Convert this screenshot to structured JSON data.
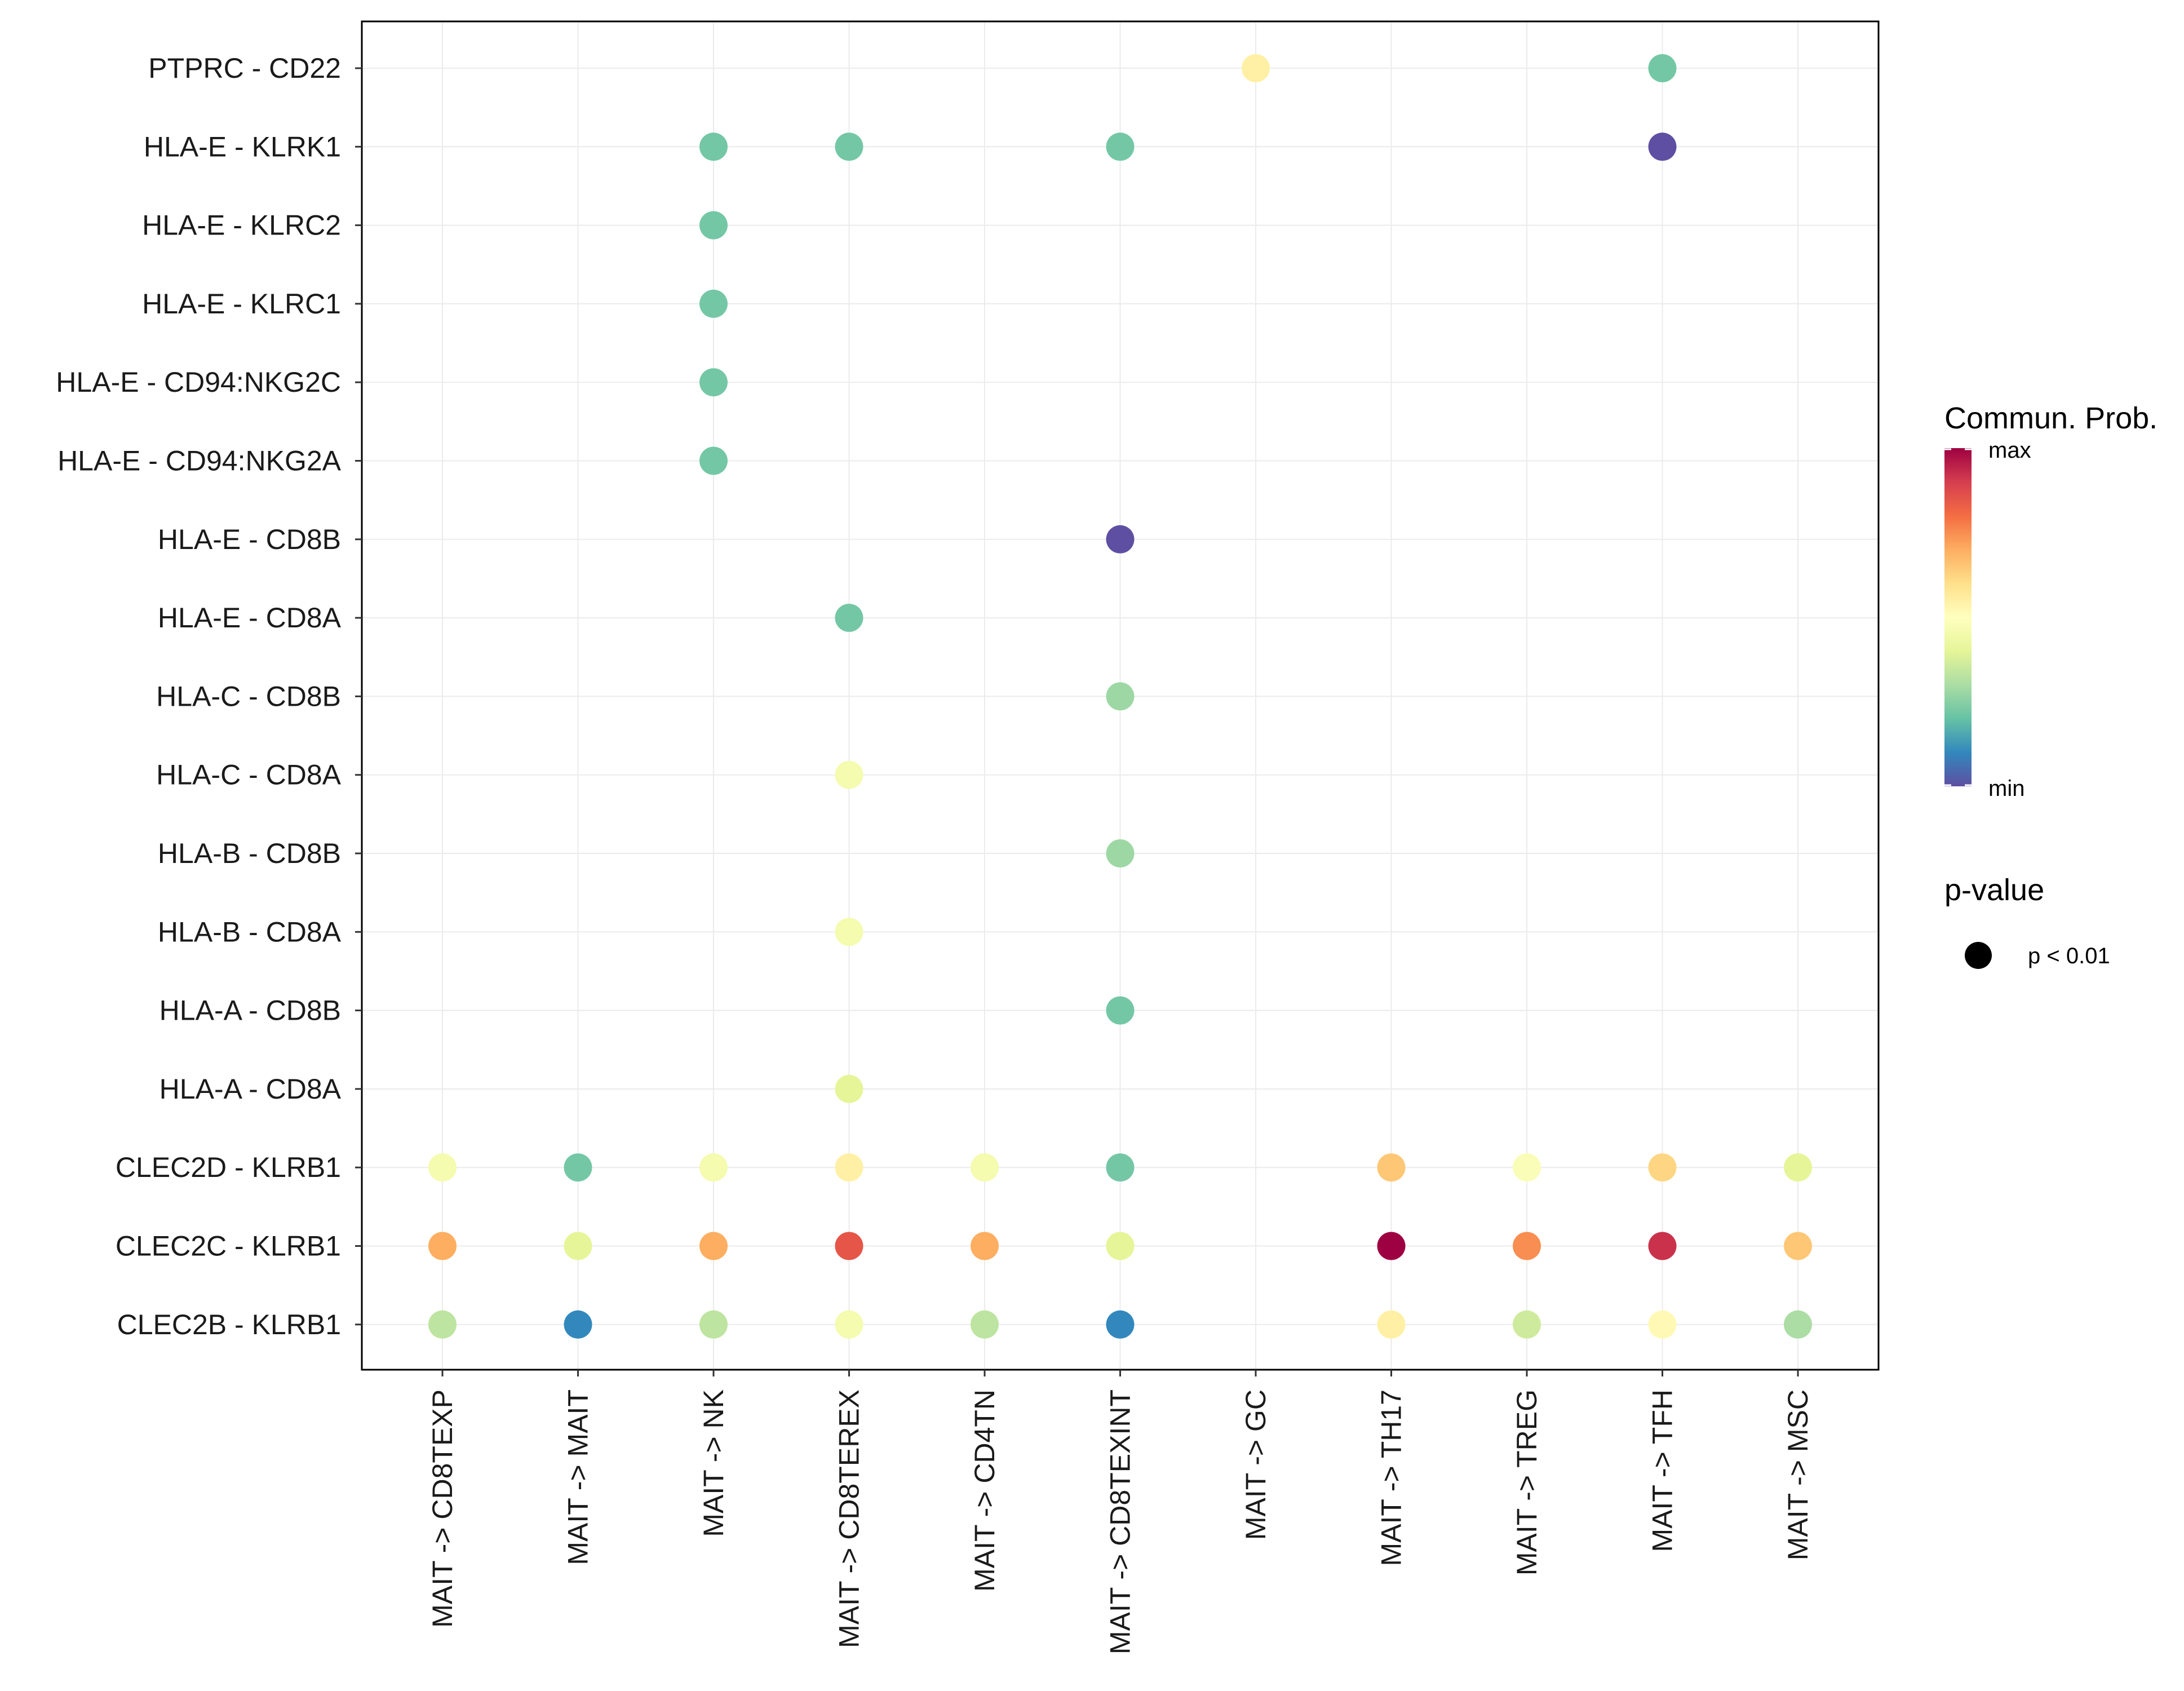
{
  "chart_data": {
    "type": "scatter",
    "subtype": "dot-plot",
    "title": "",
    "xlabel": "",
    "ylabel": "",
    "grid": true,
    "x_categories": [
      "MAIT -> CD8TEXP",
      "MAIT -> MAIT",
      "MAIT -> NK",
      "MAIT -> CD8TEREX",
      "MAIT -> CD4TN",
      "MAIT -> CD8TEXINT",
      "MAIT -> GC",
      "MAIT -> TH17",
      "MAIT -> TREG",
      "MAIT -> TFH",
      "MAIT -> MSC"
    ],
    "y_categories": [
      "PTPRC - CD22",
      "HLA-E - KLRK1",
      "HLA-E - KLRC2",
      "HLA-E - KLRC1",
      "HLA-E - CD94:NKG2C",
      "HLA-E - CD94:NKG2A",
      "HLA-E - CD8B",
      "HLA-E - CD8A",
      "HLA-C - CD8B",
      "HLA-C - CD8A",
      "HLA-B - CD8B",
      "HLA-B - CD8A",
      "HLA-A - CD8B",
      "HLA-A - CD8A",
      "CLEC2D - KLRB1",
      "CLEC2C - KLRB1",
      "CLEC2B - KLRB1"
    ],
    "points": [
      {
        "x": "MAIT -> GC",
        "y": "PTPRC - CD22",
        "prob": 0.55
      },
      {
        "x": "MAIT -> TFH",
        "y": "PTPRC - CD22",
        "prob": 0.22
      },
      {
        "x": "MAIT -> NK",
        "y": "HLA-E - KLRK1",
        "prob": 0.22
      },
      {
        "x": "MAIT -> CD8TEREX",
        "y": "HLA-E - KLRK1",
        "prob": 0.22
      },
      {
        "x": "MAIT -> CD8TEXINT",
        "y": "HLA-E - KLRK1",
        "prob": 0.22
      },
      {
        "x": "MAIT -> TFH",
        "y": "HLA-E - KLRK1",
        "prob": 0.0
      },
      {
        "x": "MAIT -> NK",
        "y": "HLA-E - KLRC2",
        "prob": 0.22
      },
      {
        "x": "MAIT -> NK",
        "y": "HLA-E - KLRC1",
        "prob": 0.22
      },
      {
        "x": "MAIT -> NK",
        "y": "HLA-E - CD94:NKG2C",
        "prob": 0.22
      },
      {
        "x": "MAIT -> NK",
        "y": "HLA-E - CD94:NKG2A",
        "prob": 0.22
      },
      {
        "x": "MAIT -> CD8TEXINT",
        "y": "HLA-E - CD8B",
        "prob": 0.0
      },
      {
        "x": "MAIT -> CD8TEREX",
        "y": "HLA-E - CD8A",
        "prob": 0.22
      },
      {
        "x": "MAIT -> CD8TEXINT",
        "y": "HLA-C - CD8B",
        "prob": 0.28
      },
      {
        "x": "MAIT -> CD8TEREX",
        "y": "HLA-C - CD8A",
        "prob": 0.46
      },
      {
        "x": "MAIT -> CD8TEXINT",
        "y": "HLA-B - CD8B",
        "prob": 0.28
      },
      {
        "x": "MAIT -> CD8TEREX",
        "y": "HLA-B - CD8A",
        "prob": 0.46
      },
      {
        "x": "MAIT -> CD8TEXINT",
        "y": "HLA-A - CD8B",
        "prob": 0.22
      },
      {
        "x": "MAIT -> CD8TEREX",
        "y": "HLA-A - CD8A",
        "prob": 0.4
      },
      {
        "x": "MAIT -> CD8TEXP",
        "y": "CLEC2D - KLRB1",
        "prob": 0.46
      },
      {
        "x": "MAIT -> MAIT",
        "y": "CLEC2D - KLRB1",
        "prob": 0.22
      },
      {
        "x": "MAIT -> NK",
        "y": "CLEC2D - KLRB1",
        "prob": 0.46
      },
      {
        "x": "MAIT -> CD8TEREX",
        "y": "CLEC2D - KLRB1",
        "prob": 0.55
      },
      {
        "x": "MAIT -> CD4TN",
        "y": "CLEC2D - KLRB1",
        "prob": 0.46
      },
      {
        "x": "MAIT -> CD8TEXINT",
        "y": "CLEC2D - KLRB1",
        "prob": 0.22
      },
      {
        "x": "MAIT -> TH17",
        "y": "CLEC2D - KLRB1",
        "prob": 0.65
      },
      {
        "x": "MAIT -> TREG",
        "y": "CLEC2D - KLRB1",
        "prob": 0.48
      },
      {
        "x": "MAIT -> TFH",
        "y": "CLEC2D - KLRB1",
        "prob": 0.62
      },
      {
        "x": "MAIT -> MSC",
        "y": "CLEC2D - KLRB1",
        "prob": 0.4
      },
      {
        "x": "MAIT -> CD8TEXP",
        "y": "CLEC2C - KLRB1",
        "prob": 0.7
      },
      {
        "x": "MAIT -> MAIT",
        "y": "CLEC2C - KLRB1",
        "prob": 0.4
      },
      {
        "x": "MAIT -> NK",
        "y": "CLEC2C - KLRB1",
        "prob": 0.7
      },
      {
        "x": "MAIT -> CD8TEREX",
        "y": "CLEC2C - KLRB1",
        "prob": 0.85
      },
      {
        "x": "MAIT -> CD4TN",
        "y": "CLEC2C - KLRB1",
        "prob": 0.7
      },
      {
        "x": "MAIT -> CD8TEXINT",
        "y": "CLEC2C - KLRB1",
        "prob": 0.4
      },
      {
        "x": "MAIT -> TH17",
        "y": "CLEC2C - KLRB1",
        "prob": 1.0
      },
      {
        "x": "MAIT -> TREG",
        "y": "CLEC2C - KLRB1",
        "prob": 0.75
      },
      {
        "x": "MAIT -> TFH",
        "y": "CLEC2C - KLRB1",
        "prob": 0.92
      },
      {
        "x": "MAIT -> MSC",
        "y": "CLEC2C - KLRB1",
        "prob": 0.65
      },
      {
        "x": "MAIT -> CD8TEXP",
        "y": "CLEC2B - KLRB1",
        "prob": 0.33
      },
      {
        "x": "MAIT -> MAIT",
        "y": "CLEC2B - KLRB1",
        "prob": 0.1
      },
      {
        "x": "MAIT -> NK",
        "y": "CLEC2B - KLRB1",
        "prob": 0.33
      },
      {
        "x": "MAIT -> CD8TEREX",
        "y": "CLEC2B - KLRB1",
        "prob": 0.46
      },
      {
        "x": "MAIT -> CD4TN",
        "y": "CLEC2B - KLRB1",
        "prob": 0.33
      },
      {
        "x": "MAIT -> CD8TEXINT",
        "y": "CLEC2B - KLRB1",
        "prob": 0.1
      },
      {
        "x": "MAIT -> TH17",
        "y": "CLEC2B - KLRB1",
        "prob": 0.55
      },
      {
        "x": "MAIT -> TREG",
        "y": "CLEC2B - KLRB1",
        "prob": 0.36
      },
      {
        "x": "MAIT -> TFH",
        "y": "CLEC2B - KLRB1",
        "prob": 0.52
      },
      {
        "x": "MAIT -> MSC",
        "y": "CLEC2B - KLRB1",
        "prob": 0.3
      }
    ],
    "color_legend": {
      "title": "Commun. Prob.",
      "max_label": "max",
      "min_label": "min",
      "colors": [
        "#9e0142",
        "#d53e4f",
        "#f46d43",
        "#fdae61",
        "#fee08b",
        "#ffffbf",
        "#e6f598",
        "#abdda4",
        "#66c2a5",
        "#3288bd",
        "#5e4fa2"
      ]
    },
    "size_legend": {
      "title": "p-value",
      "label": "p < 0.01"
    }
  }
}
